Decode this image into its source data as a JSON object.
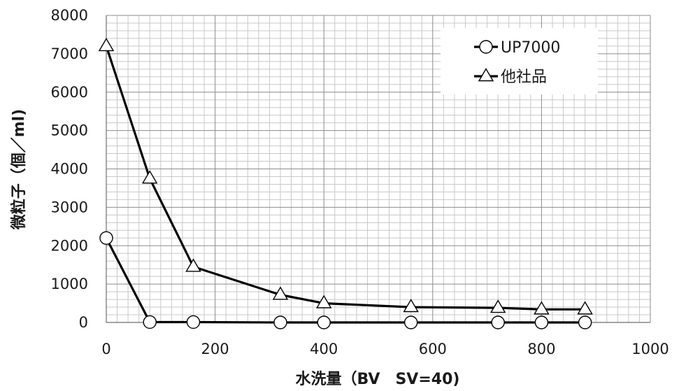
{
  "chart_data": {
    "type": "line",
    "xlabel": "水洗量（BV　SV=40)",
    "ylabel": "微粒子（個／ml)",
    "xlim": [
      0,
      1000
    ],
    "ylim": [
      0,
      8000
    ],
    "xticks": [
      0,
      200,
      400,
      600,
      800,
      1000
    ],
    "yticks": [
      0,
      1000,
      2000,
      3000,
      4000,
      5000,
      6000,
      7000,
      8000
    ],
    "xtick_labels": [
      "0",
      "200",
      "400",
      "600",
      "800",
      "1000"
    ],
    "ytick_labels": [
      "0",
      "1000",
      "2000",
      "3000",
      "4000",
      "5000",
      "6000",
      "7000",
      "8000"
    ],
    "grid": true,
    "legend_position": "top-right",
    "series": [
      {
        "name": "UP7000",
        "marker": "circle",
        "color": "#000000",
        "x": [
          0,
          80,
          160,
          320,
          400,
          560,
          720,
          800,
          880
        ],
        "y": [
          2200,
          10,
          10,
          0,
          0,
          0,
          0,
          0,
          0
        ]
      },
      {
        "name": "他社品",
        "marker": "triangle",
        "color": "#000000",
        "x": [
          0,
          80,
          160,
          320,
          400,
          560,
          720,
          800,
          880
        ],
        "y": [
          7200,
          3750,
          1450,
          720,
          500,
          400,
          380,
          340,
          340
        ]
      }
    ]
  }
}
